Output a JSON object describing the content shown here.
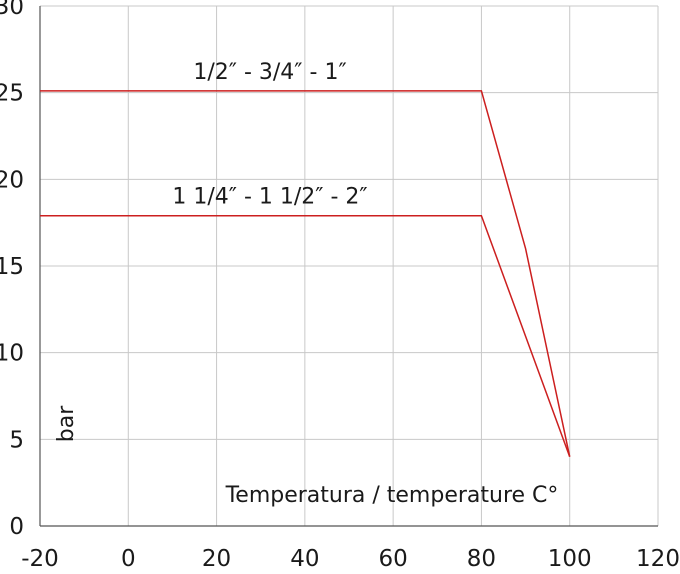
{
  "chart_data": {
    "type": "line",
    "title": "",
    "xlabel": "Temperatura / temperature C°",
    "ylabel": "bar",
    "xlim": [
      -20,
      120
    ],
    "ylim": [
      0,
      30
    ],
    "x_ticks": [
      -20,
      0,
      20,
      40,
      60,
      80,
      100,
      120
    ],
    "y_ticks": [
      0,
      5,
      10,
      15,
      20,
      25,
      30
    ],
    "grid": true,
    "line_color": "#cc1f1f",
    "series": [
      {
        "name": "1/2″ - 3/4″ - 1″",
        "x": [
          -20,
          80,
          90,
          100
        ],
        "y": [
          25.1,
          25.1,
          16,
          4
        ]
      },
      {
        "name": "1 1/4″ - 1 1/2″ - 2″",
        "x": [
          -20,
          80,
          100
        ],
        "y": [
          17.9,
          17.9,
          4
        ]
      }
    ]
  }
}
